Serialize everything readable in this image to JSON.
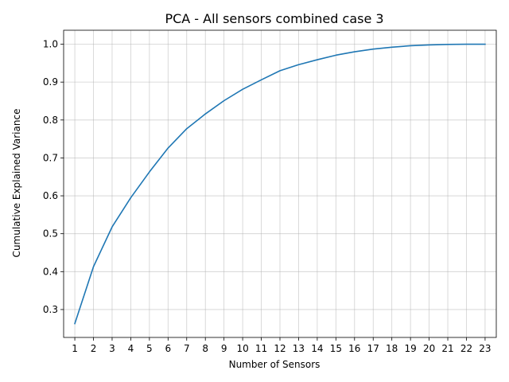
{
  "chart_data": {
    "type": "line",
    "title": "PCA - All sensors combined case 3",
    "xlabel": "Number of Sensors",
    "ylabel": "Cumulative Explained Variance",
    "x": [
      1,
      2,
      3,
      4,
      5,
      6,
      7,
      8,
      9,
      10,
      11,
      12,
      13,
      14,
      15,
      16,
      17,
      18,
      19,
      20,
      21,
      22,
      23
    ],
    "series": [
      {
        "name": "",
        "color": "#1f77b4",
        "values": [
          0.263,
          0.413,
          0.518,
          0.595,
          0.663,
          0.726,
          0.777,
          0.816,
          0.851,
          0.881,
          0.906,
          0.93,
          0.946,
          0.959,
          0.971,
          0.98,
          0.987,
          0.992,
          0.996,
          0.998,
          0.9995,
          1.0,
          1.0
        ]
      }
    ],
    "xlim": [
      0.4,
      23.6
    ],
    "ylim": [
      0.2264,
      1.0368
    ],
    "x_ticks": [
      "1",
      "2",
      "3",
      "4",
      "5",
      "6",
      "7",
      "8",
      "9",
      "10",
      "11",
      "12",
      "13",
      "14",
      "15",
      "16",
      "17",
      "18",
      "19",
      "20",
      "21",
      "22",
      "23"
    ],
    "y_ticks": [
      "0.3",
      "0.4",
      "0.5",
      "0.6",
      "0.7",
      "0.8",
      "0.9",
      "1.0"
    ],
    "y_tick_values": [
      0.3,
      0.4,
      0.5,
      0.6,
      0.7,
      0.8,
      0.9,
      1.0
    ],
    "grid": true
  }
}
